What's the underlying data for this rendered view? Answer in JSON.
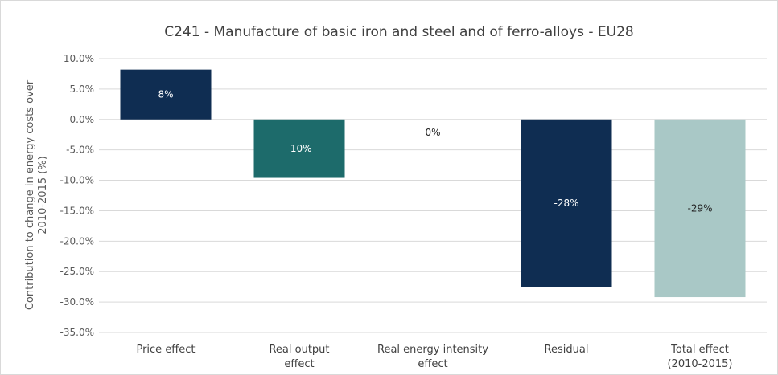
{
  "chart_data": {
    "type": "bar",
    "title": "C241 - Manufacture of basic iron and steel and of ferro-alloys - EU28",
    "ylabel_lines": [
      "Contribution to change in energy costs over",
      "2010-2015 (%)"
    ],
    "xlabel": "",
    "categories": [
      [
        "Price effect"
      ],
      [
        "Real output",
        "effect"
      ],
      [
        "Real energy intensity",
        "effect"
      ],
      [
        "Residual"
      ],
      [
        "Total effect",
        "(2010-2015)"
      ]
    ],
    "values": [
      8.2,
      -9.6,
      0,
      -27.5,
      -29.2
    ],
    "data_labels": [
      "8%",
      "-10%",
      "0%",
      "-28%",
      "-29%"
    ],
    "colors": [
      "#0f2d52",
      "#1d6b6b",
      "#0f2d52",
      "#0f2d52",
      "#a9c8c6"
    ],
    "label_colors": [
      "#ffffff",
      "#ffffff",
      "#222222",
      "#ffffff",
      "#222222"
    ],
    "ylim": [
      -35,
      10
    ],
    "yticks": [
      10,
      5,
      0,
      -5,
      -10,
      -15,
      -20,
      -25,
      -30,
      -35
    ],
    "ytick_labels": [
      "10.0%",
      "5.0%",
      "0.0%",
      "-5.0%",
      "-10.0%",
      "-15.0%",
      "-20.0%",
      "-25.0%",
      "-30.0%",
      "-35.0%"
    ],
    "grid": true,
    "legend": "none"
  }
}
